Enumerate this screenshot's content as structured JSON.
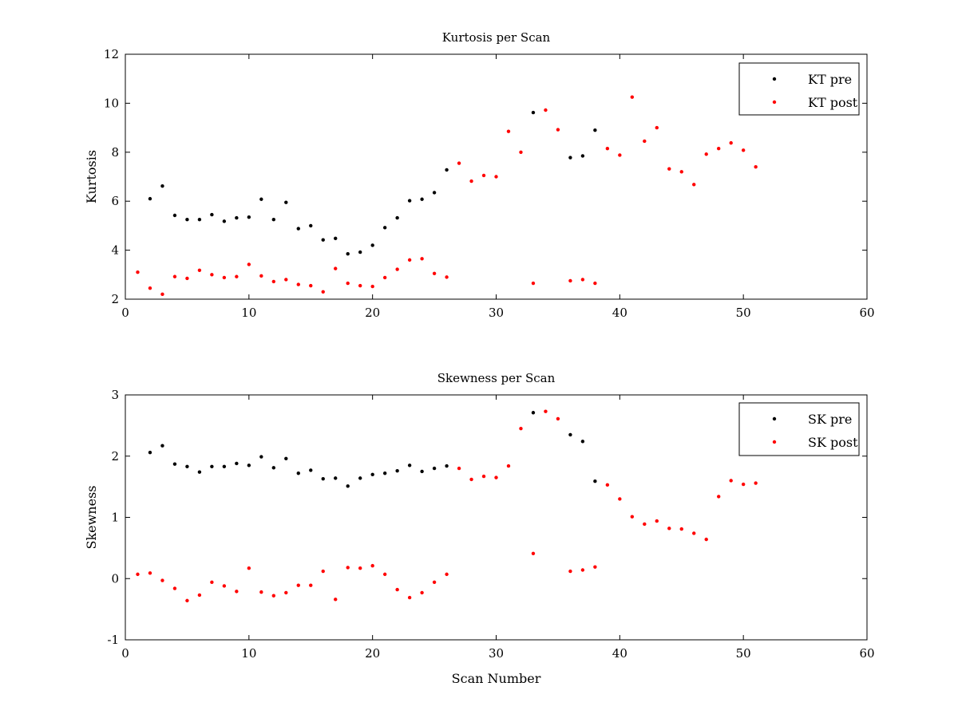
{
  "chart_data": [
    {
      "type": "scatter",
      "title": "Kurtosis per Scan",
      "xlabel": "",
      "ylabel": "Kurtosis",
      "xlim": [
        0,
        60
      ],
      "ylim": [
        2,
        12
      ],
      "xticks": [
        0,
        10,
        20,
        30,
        40,
        50,
        60
      ],
      "yticks": [
        2,
        4,
        6,
        8,
        10,
        12
      ],
      "grid": false,
      "legend_position": "top-right",
      "series": [
        {
          "name": "KT pre",
          "color": "#000000",
          "points": [
            [
              2,
              6.1
            ],
            [
              3,
              6.62
            ],
            [
              4,
              5.42
            ],
            [
              5,
              5.25
            ],
            [
              6,
              5.25
            ],
            [
              7,
              5.45
            ],
            [
              8,
              5.18
            ],
            [
              9,
              5.32
            ],
            [
              10,
              5.35
            ],
            [
              11,
              6.08
            ],
            [
              12,
              5.25
            ],
            [
              13,
              5.95
            ],
            [
              14,
              4.88
            ],
            [
              15,
              5.0
            ],
            [
              16,
              4.42
            ],
            [
              17,
              4.48
            ],
            [
              18,
              3.85
            ],
            [
              19,
              3.92
            ],
            [
              20,
              4.2
            ],
            [
              21,
              4.92
            ],
            [
              22,
              5.32
            ],
            [
              23,
              6.02
            ],
            [
              24,
              6.08
            ],
            [
              25,
              6.35
            ],
            [
              26,
              7.28
            ],
            [
              33,
              9.62
            ],
            [
              36,
              7.78
            ],
            [
              37,
              7.85
            ],
            [
              38,
              8.9
            ]
          ]
        },
        {
          "name": "KT post",
          "color": "#ff0000",
          "points": [
            [
              1,
              3.1
            ],
            [
              2,
              2.45
            ],
            [
              3,
              2.2
            ],
            [
              4,
              2.92
            ],
            [
              5,
              2.85
            ],
            [
              6,
              3.18
            ],
            [
              7,
              3.0
            ],
            [
              8,
              2.88
            ],
            [
              9,
              2.92
            ],
            [
              10,
              3.42
            ],
            [
              11,
              2.95
            ],
            [
              12,
              2.72
            ],
            [
              13,
              2.8
            ],
            [
              14,
              2.6
            ],
            [
              15,
              2.55
            ],
            [
              16,
              2.3
            ],
            [
              17,
              3.25
            ],
            [
              18,
              2.65
            ],
            [
              19,
              2.55
            ],
            [
              20,
              2.52
            ],
            [
              21,
              2.88
            ],
            [
              22,
              3.22
            ],
            [
              23,
              3.6
            ],
            [
              24,
              3.65
            ],
            [
              25,
              3.05
            ],
            [
              26,
              2.9
            ],
            [
              27,
              7.55
            ],
            [
              28,
              6.82
            ],
            [
              29,
              7.05
            ],
            [
              30,
              7.0
            ],
            [
              31,
              8.85
            ],
            [
              32,
              8.0
            ],
            [
              33,
              2.65
            ],
            [
              34,
              9.72
            ],
            [
              35,
              8.92
            ],
            [
              36,
              2.75
            ],
            [
              37,
              2.8
            ],
            [
              38,
              2.65
            ],
            [
              39,
              8.15
            ],
            [
              40,
              7.88
            ],
            [
              41,
              10.25
            ],
            [
              42,
              8.45
            ],
            [
              43,
              9.0
            ],
            [
              44,
              7.32
            ],
            [
              45,
              7.2
            ],
            [
              46,
              6.68
            ],
            [
              47,
              7.92
            ],
            [
              48,
              8.15
            ],
            [
              49,
              8.38
            ],
            [
              50,
              8.08
            ],
            [
              51,
              7.4
            ]
          ]
        }
      ]
    },
    {
      "type": "scatter",
      "title": "Skewness per Scan",
      "xlabel": "Scan Number",
      "ylabel": "Skewness",
      "xlim": [
        0,
        60
      ],
      "ylim": [
        -1,
        3
      ],
      "xticks": [
        0,
        10,
        20,
        30,
        40,
        50,
        60
      ],
      "yticks": [
        -1,
        0,
        1,
        2,
        3
      ],
      "grid": false,
      "legend_position": "top-right",
      "series": [
        {
          "name": "SK pre",
          "color": "#000000",
          "points": [
            [
              2,
              2.06
            ],
            [
              3,
              2.17
            ],
            [
              4,
              1.87
            ],
            [
              5,
              1.83
            ],
            [
              6,
              1.74
            ],
            [
              7,
              1.83
            ],
            [
              8,
              1.83
            ],
            [
              9,
              1.88
            ],
            [
              10,
              1.85
            ],
            [
              11,
              1.99
            ],
            [
              12,
              1.81
            ],
            [
              13,
              1.96
            ],
            [
              14,
              1.72
            ],
            [
              15,
              1.77
            ],
            [
              16,
              1.63
            ],
            [
              17,
              1.64
            ],
            [
              18,
              1.51
            ],
            [
              19,
              1.64
            ],
            [
              20,
              1.7
            ],
            [
              21,
              1.72
            ],
            [
              22,
              1.76
            ],
            [
              23,
              1.85
            ],
            [
              24,
              1.75
            ],
            [
              25,
              1.8
            ],
            [
              26,
              1.84
            ],
            [
              33,
              2.71
            ],
            [
              36,
              2.35
            ],
            [
              37,
              2.24
            ],
            [
              38,
              1.59
            ]
          ]
        },
        {
          "name": "SK post",
          "color": "#ff0000",
          "points": [
            [
              1,
              0.07
            ],
            [
              2,
              0.09
            ],
            [
              3,
              -0.03
            ],
            [
              4,
              -0.16
            ],
            [
              5,
              -0.36
            ],
            [
              6,
              -0.27
            ],
            [
              7,
              -0.06
            ],
            [
              8,
              -0.12
            ],
            [
              9,
              -0.21
            ],
            [
              10,
              0.17
            ],
            [
              11,
              -0.22
            ],
            [
              12,
              -0.28
            ],
            [
              13,
              -0.23
            ],
            [
              14,
              -0.11
            ],
            [
              15,
              -0.11
            ],
            [
              16,
              0.12
            ],
            [
              17,
              -0.34
            ],
            [
              18,
              0.18
            ],
            [
              19,
              0.17
            ],
            [
              20,
              0.21
            ],
            [
              21,
              0.07
            ],
            [
              22,
              -0.18
            ],
            [
              23,
              -0.31
            ],
            [
              24,
              -0.23
            ],
            [
              25,
              -0.06
            ],
            [
              26,
              0.07
            ],
            [
              27,
              1.8
            ],
            [
              28,
              1.62
            ],
            [
              29,
              1.67
            ],
            [
              30,
              1.65
            ],
            [
              31,
              1.84
            ],
            [
              32,
              2.45
            ],
            [
              33,
              0.41
            ],
            [
              34,
              2.73
            ],
            [
              35,
              2.61
            ],
            [
              36,
              0.12
            ],
            [
              37,
              0.14
            ],
            [
              38,
              0.19
            ],
            [
              39,
              1.53
            ],
            [
              40,
              1.3
            ],
            [
              41,
              1.01
            ],
            [
              42,
              0.89
            ],
            [
              43,
              0.94
            ],
            [
              44,
              0.82
            ],
            [
              45,
              0.81
            ],
            [
              46,
              0.74
            ],
            [
              47,
              0.64
            ],
            [
              48,
              1.34
            ],
            [
              49,
              1.6
            ],
            [
              50,
              1.54
            ],
            [
              51,
              1.56
            ]
          ]
        }
      ]
    }
  ]
}
